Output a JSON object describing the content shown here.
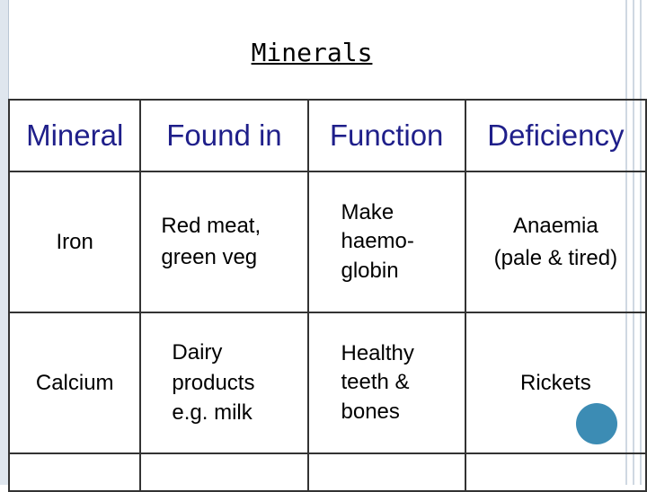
{
  "title": "Minerals",
  "table": {
    "headers": [
      "Mineral",
      "Found in",
      "Function",
      "Deficiency"
    ],
    "rows": [
      {
        "mineral": "Iron",
        "found_in": [
          "Red meat,",
          "green veg"
        ],
        "function": [
          "Make",
          "haemo-",
          "globin"
        ],
        "deficiency": [
          "Anaemia",
          "(pale & tired)"
        ]
      },
      {
        "mineral": "Calcium",
        "found_in": [
          "Dairy",
          "products",
          "e.g. milk"
        ],
        "function": [
          "Healthy",
          "teeth &",
          "bones"
        ],
        "deficiency": [
          "Rickets"
        ]
      }
    ]
  },
  "colors": {
    "header": "#1f1f8a",
    "dairy": "#d4a000",
    "dot": "#3c8cb4"
  }
}
